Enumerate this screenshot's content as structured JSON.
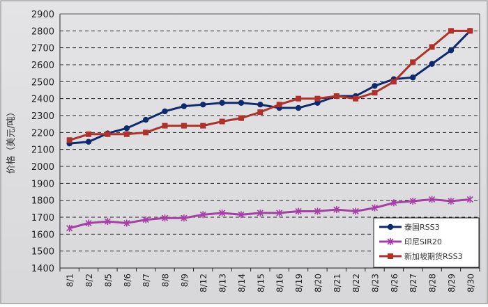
{
  "chart_data": {
    "type": "line",
    "title": "",
    "xlabel": "",
    "ylabel": "价格（美元/吨）",
    "ylim": [
      1400,
      2900
    ],
    "yticks": [
      1400,
      1500,
      1600,
      1700,
      1800,
      1900,
      2000,
      2100,
      2200,
      2300,
      2400,
      2500,
      2600,
      2700,
      2800,
      2900
    ],
    "grid": "horizontal dashed",
    "legend_position": "bottom-right",
    "categories": [
      "8/1",
      "8/2",
      "8/5",
      "8/6",
      "8/7",
      "8/8",
      "8/9",
      "8/12",
      "8/13",
      "8/14",
      "8/15",
      "8/16",
      "8/19",
      "8/20",
      "8/21",
      "8/22",
      "8/23",
      "8/26",
      "8/27",
      "8/28",
      "8/29",
      "8/30"
    ],
    "series": [
      {
        "name": "泰国RSS3",
        "color": "#0d2a6e",
        "marker": "circle",
        "values": [
          2135,
          2145,
          2195,
          2225,
          2275,
          2325,
          2355,
          2365,
          2375,
          2375,
          2365,
          2345,
          2345,
          2375,
          2415,
          2415,
          2475,
          2515,
          2525,
          2605,
          2685,
          2800
        ]
      },
      {
        "name": "印尼SIR20",
        "color": "#a53fa5",
        "marker": "star",
        "values": [
          1635,
          1665,
          1675,
          1665,
          1685,
          1695,
          1695,
          1715,
          1725,
          1715,
          1725,
          1725,
          1735,
          1735,
          1745,
          1735,
          1755,
          1785,
          1795,
          1805,
          1795,
          1805
        ]
      },
      {
        "name": "新加坡期货RSS3",
        "color": "#b0302a",
        "marker": "square",
        "values": [
          2155,
          2190,
          2190,
          2190,
          2200,
          2240,
          2240,
          2240,
          2265,
          2285,
          2320,
          2365,
          2400,
          2400,
          2415,
          2400,
          2435,
          2500,
          2615,
          2705,
          2800,
          2800
        ]
      }
    ]
  }
}
